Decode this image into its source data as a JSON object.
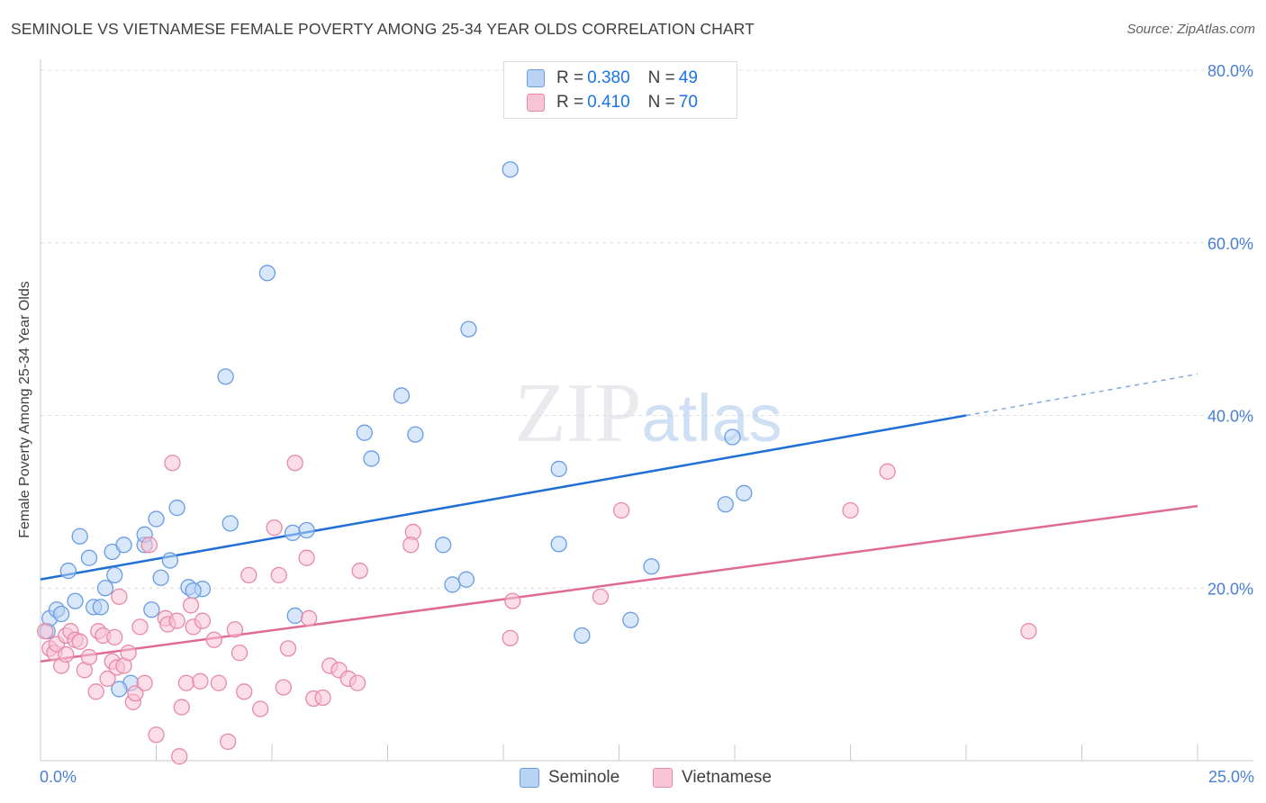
{
  "chart_data": {
    "type": "scatter",
    "title": "SEMINOLE VS VIETNAMESE FEMALE POVERTY AMONG 25-34 YEAR OLDS CORRELATION CHART",
    "source": "Source: ZipAtlas.com",
    "xlabel": "",
    "ylabel": "Female Poverty Among 25-34 Year Olds",
    "xlim": [
      0,
      25
    ],
    "ylim": [
      0,
      80
    ],
    "x_tick_labels": [
      "0.0%",
      "25.0%"
    ],
    "y_ticks": [
      20,
      40,
      60,
      80
    ],
    "y_tick_labels": [
      "20.0%",
      "40.0%",
      "60.0%",
      "80.0%"
    ],
    "grid": true,
    "watermark": "ZIPatlas",
    "legend_stats": [
      {
        "r_label": "R =",
        "r_value": "0.380",
        "n_label": "N =",
        "n_value": "49"
      },
      {
        "r_label": "R =",
        "r_value": "0.410",
        "n_label": "N =",
        "n_value": "70"
      }
    ],
    "legend_position": "bottom",
    "series": [
      {
        "name": "Seminole",
        "color": "#6a9ce4",
        "fill": "#b8d3f4",
        "trend": {
          "x0": 0,
          "y0": 21.0,
          "x1": 20.0,
          "y1": 40.0,
          "x_dash_end": 25,
          "y_dash_end": 44.8
        },
        "points": [
          [
            0.15,
            15.0
          ],
          [
            0.2,
            16.5
          ],
          [
            0.35,
            17.5
          ],
          [
            0.45,
            17.0
          ],
          [
            0.6,
            22.0
          ],
          [
            0.75,
            18.5
          ],
          [
            0.85,
            26.0
          ],
          [
            1.05,
            23.5
          ],
          [
            1.15,
            17.8
          ],
          [
            1.3,
            17.8
          ],
          [
            1.4,
            20.0
          ],
          [
            1.6,
            21.5
          ],
          [
            1.55,
            24.2
          ],
          [
            1.8,
            25.0
          ],
          [
            1.95,
            9.0
          ],
          [
            1.7,
            8.3
          ],
          [
            2.25,
            25.0
          ],
          [
            2.25,
            26.2
          ],
          [
            2.5,
            28.0
          ],
          [
            2.4,
            17.5
          ],
          [
            2.6,
            21.2
          ],
          [
            2.8,
            23.2
          ],
          [
            2.95,
            29.3
          ],
          [
            3.2,
            20.1
          ],
          [
            3.5,
            19.9
          ],
          [
            3.3,
            19.7
          ],
          [
            4.0,
            44.5
          ],
          [
            4.1,
            27.5
          ],
          [
            4.9,
            56.5
          ],
          [
            5.45,
            26.4
          ],
          [
            5.5,
            16.8
          ],
          [
            5.75,
            26.7
          ],
          [
            7.0,
            38.0
          ],
          [
            7.15,
            35.0
          ],
          [
            7.8,
            42.3
          ],
          [
            8.1,
            37.8
          ],
          [
            8.7,
            25.0
          ],
          [
            8.9,
            20.4
          ],
          [
            9.2,
            21.0
          ],
          [
            9.25,
            50.0
          ],
          [
            10.15,
            68.5
          ],
          [
            11.2,
            33.8
          ],
          [
            11.2,
            25.1
          ],
          [
            11.7,
            14.5
          ],
          [
            12.75,
            16.3
          ],
          [
            13.2,
            22.5
          ],
          [
            14.8,
            29.7
          ],
          [
            15.2,
            31.0
          ],
          [
            14.95,
            37.5
          ]
        ]
      },
      {
        "name": "Vietnamese",
        "color": "#e889a8",
        "fill": "#f8c3d4",
        "trend": {
          "x0": 0,
          "y0": 11.5,
          "x1": 25,
          "y1": 29.5
        },
        "points": [
          [
            0.1,
            15.0
          ],
          [
            0.2,
            13.0
          ],
          [
            0.3,
            12.5
          ],
          [
            0.35,
            13.5
          ],
          [
            0.45,
            11.0
          ],
          [
            0.55,
            14.5
          ],
          [
            0.65,
            15.0
          ],
          [
            0.75,
            14.0
          ],
          [
            0.85,
            13.8
          ],
          [
            0.95,
            10.5
          ],
          [
            1.05,
            12.0
          ],
          [
            1.2,
            8.0
          ],
          [
            1.25,
            15.0
          ],
          [
            1.35,
            14.5
          ],
          [
            1.45,
            9.5
          ],
          [
            1.55,
            11.5
          ],
          [
            1.65,
            10.8
          ],
          [
            1.7,
            19.0
          ],
          [
            1.8,
            11.0
          ],
          [
            1.9,
            12.5
          ],
          [
            2.0,
            6.8
          ],
          [
            2.05,
            7.8
          ],
          [
            2.15,
            15.5
          ],
          [
            2.25,
            9.0
          ],
          [
            2.35,
            25.0
          ],
          [
            2.5,
            3.0
          ],
          [
            2.7,
            16.5
          ],
          [
            2.75,
            15.8
          ],
          [
            2.85,
            34.5
          ],
          [
            2.95,
            16.2
          ],
          [
            3.0,
            0.5
          ],
          [
            3.15,
            9.0
          ],
          [
            3.25,
            18.0
          ],
          [
            3.3,
            15.5
          ],
          [
            3.45,
            9.2
          ],
          [
            3.5,
            16.2
          ],
          [
            3.75,
            14.0
          ],
          [
            3.85,
            9.0
          ],
          [
            4.05,
            2.2
          ],
          [
            4.2,
            15.2
          ],
          [
            4.3,
            12.5
          ],
          [
            4.4,
            8.0
          ],
          [
            4.5,
            21.5
          ],
          [
            4.75,
            6.0
          ],
          [
            5.05,
            27.0
          ],
          [
            5.15,
            21.5
          ],
          [
            5.25,
            8.5
          ],
          [
            5.35,
            13.0
          ],
          [
            5.5,
            34.5
          ],
          [
            5.75,
            23.5
          ],
          [
            5.8,
            16.5
          ],
          [
            5.9,
            7.2
          ],
          [
            6.1,
            7.3
          ],
          [
            6.25,
            11.0
          ],
          [
            6.45,
            10.5
          ],
          [
            6.65,
            9.5
          ],
          [
            6.85,
            9.0
          ],
          [
            6.9,
            22.0
          ],
          [
            8.05,
            26.5
          ],
          [
            8.0,
            25.0
          ],
          [
            10.2,
            18.5
          ],
          [
            10.15,
            14.2
          ],
          [
            12.1,
            19.0
          ],
          [
            12.55,
            29.0
          ],
          [
            17.5,
            29.0
          ],
          [
            18.3,
            33.5
          ],
          [
            21.35,
            15.0
          ],
          [
            3.05,
            6.2
          ],
          [
            1.6,
            14.3
          ],
          [
            0.55,
            12.3
          ]
        ]
      }
    ]
  }
}
